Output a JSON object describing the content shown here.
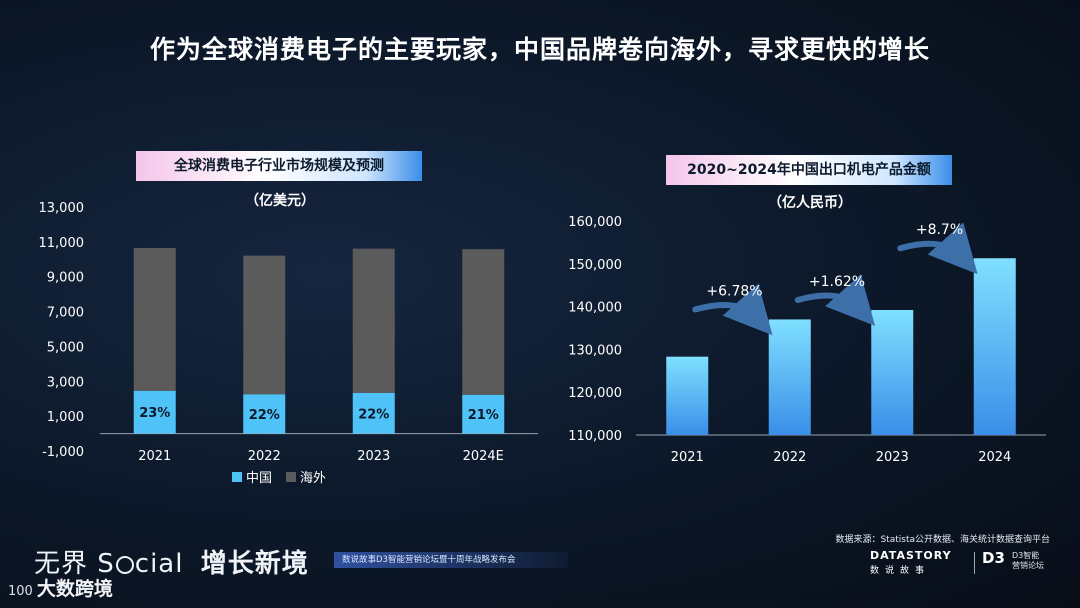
{
  "page": {
    "title": "作为全球消费电子的主要玩家，中国品牌卷向海外，寻求更快的增长",
    "source": "数据来源：Statista公开数据、海关统计数据查询平台"
  },
  "footer": {
    "brand_left_a": "无界 S",
    "brand_left_b": "cial",
    "brand_left_c": "增长新境",
    "band_text": "数说故事D3智能营销论坛暨十周年战略发布会",
    "datastory": "DATASTORY",
    "datastory_sub": "数说故事",
    "d3": "D3",
    "d3_sub_1": "D3智能",
    "d3_sub_2": "营销论坛",
    "watermark_mark": "100",
    "watermark": "大数跨境"
  },
  "colors": {
    "china": "#4fc3f7",
    "overseas": "#5b5b5b",
    "bar_top": "#7fe0ff",
    "bar_bottom": "#3a8ee8",
    "axis": "#9aa3b0",
    "arrow": "#3d6fa8"
  },
  "chart_data": [
    {
      "type": "bar",
      "stacked": true,
      "title": "全球消费电子行业市场规模及预测",
      "unit": "（亿美元）",
      "categories": [
        "2021",
        "2022",
        "2023",
        "2024E"
      ],
      "series": [
        {
          "name": "中国",
          "values": [
            2450,
            2250,
            2330,
            2220
          ]
        },
        {
          "name": "海外",
          "values": [
            8200,
            7960,
            8280,
            8360
          ]
        }
      ],
      "data_labels": [
        "23%",
        "22%",
        "22%",
        "21%"
      ],
      "yticks": [
        "13,000",
        "11,000",
        "9,000",
        "7,000",
        "5,000",
        "3,000",
        "1,000",
        "-1,000"
      ],
      "ylim": [
        -1000,
        13000
      ],
      "legend": [
        "中国",
        "海外"
      ],
      "legend_position": "bottom"
    },
    {
      "type": "bar",
      "title": "2020~2024年中国出口机电产品金额",
      "unit": "（亿人民币）",
      "categories": [
        "2021",
        "2022",
        "2023",
        "2024"
      ],
      "values": [
        128300,
        137000,
        139200,
        151300
      ],
      "growth_labels": [
        "+6.78%",
        "+1.62%",
        "+8.7%"
      ],
      "yticks": [
        "160,000",
        "150,000",
        "140,000",
        "130,000",
        "120,000",
        "110,000"
      ],
      "ylim": [
        110000,
        160000
      ]
    }
  ]
}
